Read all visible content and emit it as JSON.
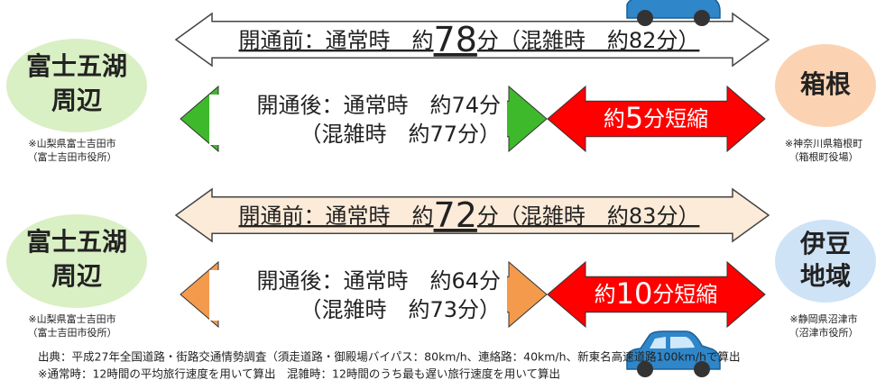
{
  "sections": [
    {
      "left": {
        "label": [
          "富士五湖",
          "周辺"
        ],
        "note": [
          "※山梨県富士吉田市",
          "（富士吉田市役所）"
        ]
      },
      "before": [
        "開通前：通常時　約",
        "78",
        "分（混雑時　約82分）"
      ],
      "after": [
        "開通後：通常時　約74分",
        "（混雑時　約77分）"
      ],
      "reduction": [
        "約",
        "5",
        "分短縮"
      ],
      "right": {
        "label": [
          "箱根"
        ],
        "note": [
          "※神奈川県箱根町",
          "（箱根町役場）"
        ]
      }
    },
    {
      "left": {
        "label": [
          "富士五湖",
          "周辺"
        ],
        "note": [
          "※山梨県富士吉田市",
          "（富士吉田市役所）"
        ]
      },
      "before": [
        "開通前：通常時　約",
        "72",
        "分（混雑時　約83分）"
      ],
      "after": [
        "開通後：通常時　約64分",
        "（混雑時　約73分）"
      ],
      "reduction": [
        "約",
        "10",
        "分短縮"
      ],
      "right": {
        "label": [
          "伊豆",
          "地域"
        ],
        "note": [
          "※静岡県沼津市",
          "（沼津市役所）"
        ]
      }
    }
  ],
  "footer": [
    "出典：平成27年全国道路・街路交通情勢調査（須走道路・御殿場バイパス：80km/h、連絡路：40km/h、新東名高速道路100km/hで算出",
    "※通常時：12時間の平均旅行速度を用いて算出　混雑時：12時間のうち最も遅い旅行速度を用いて算出"
  ]
}
